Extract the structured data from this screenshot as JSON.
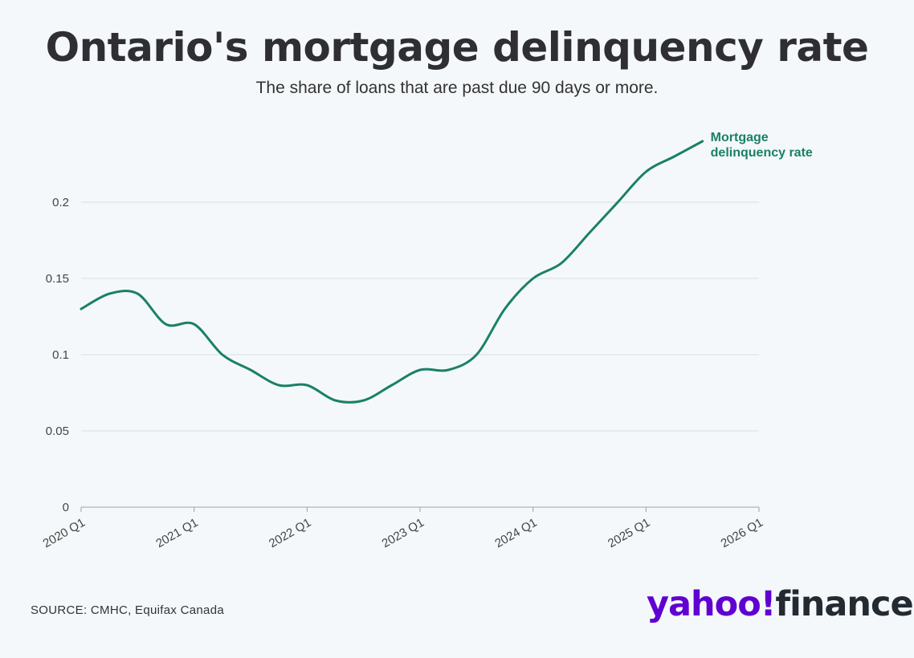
{
  "title": "Ontario's mortgage delinquency rate",
  "subtitle": "The share of loans that are past due 90 days or more.",
  "source": "SOURCE: CMHC, Equifax Canada",
  "logo": {
    "brand": "yahoo!",
    "product": "finance"
  },
  "colors": {
    "line": "#1a8068",
    "grid": "#d8dee2",
    "text": "#333333",
    "brand": "#6001d2"
  },
  "chart_data": {
    "type": "line",
    "title": "Ontario's mortgage delinquency rate",
    "xlabel": "",
    "ylabel": "",
    "x_ticks": [
      "2020 Q1",
      "2021 Q1",
      "2022 Q1",
      "2023 Q1",
      "2024 Q1",
      "2025 Q1",
      "2026 Q1"
    ],
    "y_ticks": [
      0,
      0.05,
      0.1,
      0.15,
      0.2
    ],
    "y_tick_labels": [
      "0",
      "0.05",
      "0.1",
      "0.15",
      "0.2"
    ],
    "xlim": [
      2020.0,
      2026.0
    ],
    "ylim": [
      0,
      0.25
    ],
    "series": [
      {
        "name": "Mortgage delinquency rate",
        "label_lines": [
          "Mortgage",
          "delinquency rate"
        ],
        "x": [
          2020.0,
          2020.25,
          2020.5,
          2020.75,
          2021.0,
          2021.25,
          2021.5,
          2021.75,
          2022.0,
          2022.25,
          2022.5,
          2022.75,
          2023.0,
          2023.25,
          2023.5,
          2023.75,
          2024.0,
          2024.25,
          2024.5,
          2024.75,
          2025.0,
          2025.25,
          2025.5
        ],
        "values": [
          0.13,
          0.14,
          0.14,
          0.12,
          0.12,
          0.1,
          0.09,
          0.08,
          0.08,
          0.07,
          0.07,
          0.08,
          0.09,
          0.09,
          0.1,
          0.13,
          0.15,
          0.16,
          0.18,
          0.2,
          0.22,
          0.23,
          0.24
        ]
      }
    ]
  }
}
